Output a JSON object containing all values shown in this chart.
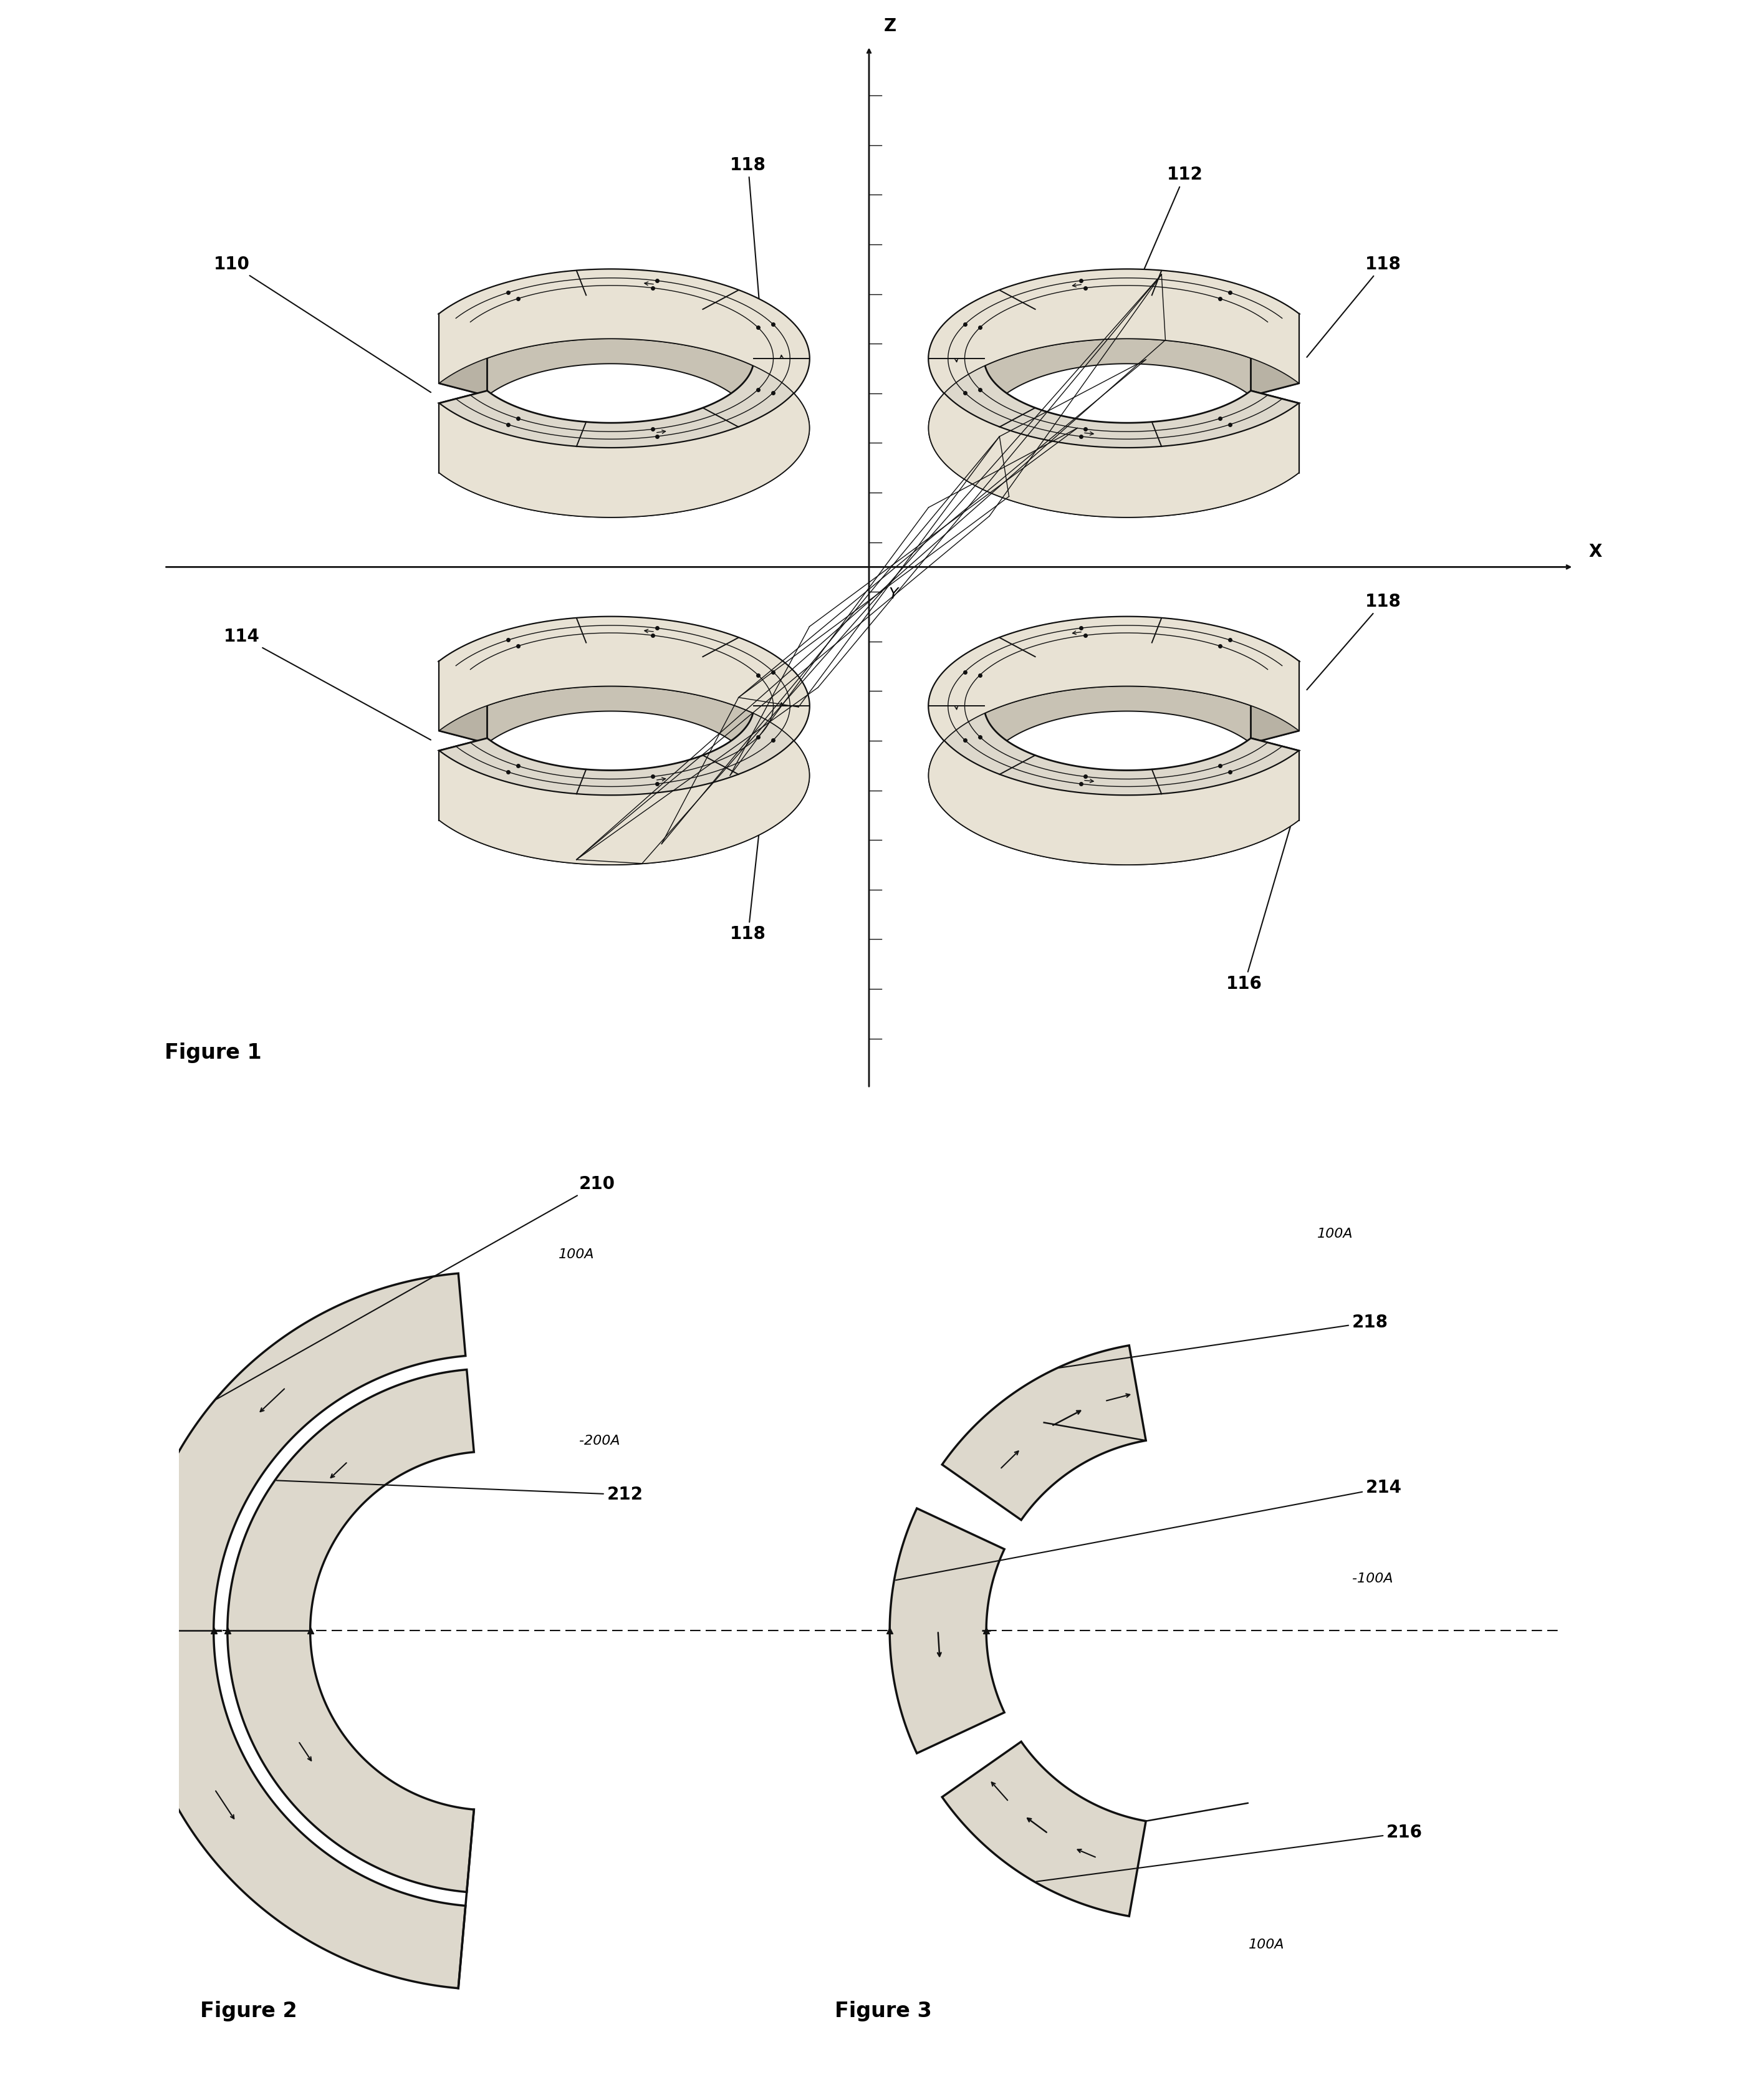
{
  "fig_width": 27.88,
  "fig_height": 33.68,
  "bg_color": "#ffffff",
  "line_color": "#111111",
  "fill_color": "#ddd8cc",
  "fig1_title": "Figure 1",
  "fig2_title": "Figure 2",
  "fig3_title": "Figure 3",
  "label_fontsize": 20,
  "title_fontsize": 24,
  "axis_label_fontsize": 20,
  "italic_fontsize": 16
}
